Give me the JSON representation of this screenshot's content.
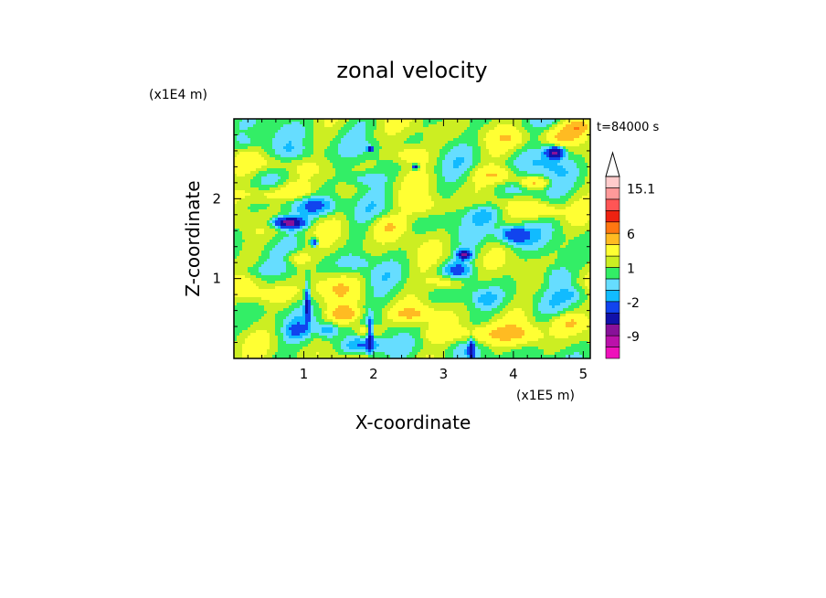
{
  "chart_data": {
    "type": "heatmap",
    "title": "zonal velocity",
    "xlabel": "X-coordinate",
    "ylabel": "Z-coordinate",
    "x_scale_label": "(x1E5 m)",
    "y_scale_label": "(x1E4 m)",
    "time_label": "t=84000 s",
    "xlim": [
      0,
      5.1
    ],
    "ylim": [
      0,
      3.0
    ],
    "x_ticks": [
      1,
      2,
      3,
      4,
      5
    ],
    "x_tick_labels": [
      "1",
      "2",
      "3",
      "4",
      "5"
    ],
    "y_ticks": [
      1,
      2
    ],
    "y_tick_labels": [
      "1",
      "2"
    ],
    "colorbar": {
      "levels": [
        -15,
        -12,
        -9,
        -6,
        -4,
        -2,
        -1,
        0,
        1,
        2,
        4,
        6,
        8,
        10,
        12.5,
        15.1
      ],
      "labeled_ticks": [
        {
          "value": 15.1,
          "label": "15.1"
        },
        {
          "value": 6,
          "label": "6"
        },
        {
          "value": 1,
          "label": "1"
        },
        {
          "value": -2,
          "label": "-2"
        },
        {
          "value": -9,
          "label": "-9"
        }
      ],
      "colors": [
        "#ee11bb",
        "#bb11aa",
        "#881199",
        "#1111aa",
        "#1144ee",
        "#11bbff",
        "#66ddff",
        "#33ee66",
        "#ccee22",
        "#ffff33",
        "#ffbb22",
        "#ff7711",
        "#ee2211",
        "#ff5555",
        "#ff9999",
        "#ffcccc"
      ],
      "extend_top": true
    },
    "field_features": [
      {
        "x": 0.78,
        "z": 1.7,
        "sx": 0.22,
        "sz": 0.07,
        "v": -8
      },
      {
        "x": 1.15,
        "z": 1.45,
        "sx": 0.05,
        "sz": 0.05,
        "v": -6
      },
      {
        "x": 1.2,
        "z": 1.9,
        "sx": 0.3,
        "sz": 0.12,
        "v": -3
      },
      {
        "x": 0.45,
        "z": 2.05,
        "sx": 0.35,
        "sz": 0.1,
        "v": 2.5
      },
      {
        "x": 0.6,
        "z": 2.45,
        "sx": 0.35,
        "sz": 0.1,
        "v": 1.5
      },
      {
        "x": 1.0,
        "z": 2.55,
        "sx": 0.4,
        "sz": 0.14,
        "v": -1.5
      },
      {
        "x": 1.85,
        "z": 2.25,
        "sx": 0.3,
        "sz": 0.1,
        "v": -2
      },
      {
        "x": 0.9,
        "z": 2.1,
        "sx": 0.25,
        "sz": 0.1,
        "v": 3
      },
      {
        "x": 4.6,
        "z": 2.58,
        "sx": 0.13,
        "sz": 0.07,
        "v": -8
      },
      {
        "x": 4.55,
        "z": 2.45,
        "sx": 0.35,
        "sz": 0.18,
        "v": -2
      },
      {
        "x": 4.7,
        "z": 2.8,
        "sx": 0.3,
        "sz": 0.12,
        "v": 3
      },
      {
        "x": 4.95,
        "z": 2.9,
        "sx": 0.2,
        "sz": 0.1,
        "v": 3.5
      },
      {
        "x": 4.0,
        "z": 1.55,
        "sx": 0.22,
        "sz": 0.12,
        "v": -5
      },
      {
        "x": 4.6,
        "z": 1.05,
        "sx": 0.2,
        "sz": 0.12,
        "v": -1.5
      },
      {
        "x": 4.8,
        "z": 1.4,
        "sx": 0.3,
        "sz": 0.12,
        "v": 0.5
      },
      {
        "x": 4.4,
        "z": 1.85,
        "sx": 0.3,
        "sz": 0.1,
        "v": 3
      },
      {
        "x": 3.75,
        "z": 2.3,
        "sx": 0.3,
        "sz": 0.1,
        "v": 3
      },
      {
        "x": 4.1,
        "z": 2.1,
        "sx": 0.3,
        "sz": 0.1,
        "v": -2
      },
      {
        "x": 3.3,
        "z": 1.3,
        "sx": 0.1,
        "sz": 0.06,
        "v": -7
      },
      {
        "x": 3.2,
        "z": 1.1,
        "sx": 0.2,
        "sz": 0.1,
        "v": -3
      },
      {
        "x": 3.05,
        "z": 0.95,
        "sx": 0.25,
        "sz": 0.1,
        "v": 3
      },
      {
        "x": 2.75,
        "z": 1.9,
        "sx": 0.3,
        "sz": 0.15,
        "v": 2
      },
      {
        "x": 2.2,
        "z": 1.65,
        "sx": 0.25,
        "sz": 0.14,
        "v": 3
      },
      {
        "x": 2.5,
        "z": 2.55,
        "sx": 0.3,
        "sz": 0.12,
        "v": 2.5
      },
      {
        "x": 1.95,
        "z": 2.8,
        "sx": 0.3,
        "sz": 0.1,
        "v": 0.5
      },
      {
        "x": 1.6,
        "z": 0.55,
        "sx": 0.2,
        "sz": 0.1,
        "v": 4
      },
      {
        "x": 1.35,
        "z": 0.35,
        "sx": 0.15,
        "sz": 0.1,
        "v": -3
      },
      {
        "x": 1.85,
        "z": 0.15,
        "sx": 0.3,
        "sz": 0.1,
        "v": -3
      },
      {
        "x": 1.9,
        "z": 0.35,
        "sx": 0.2,
        "sz": 0.08,
        "v": 3
      },
      {
        "x": 0.9,
        "z": 0.35,
        "sx": 0.15,
        "sz": 0.1,
        "v": -2
      },
      {
        "x": 1.45,
        "z": 0.9,
        "sx": 0.3,
        "sz": 0.15,
        "v": 2.5
      },
      {
        "x": 0.5,
        "z": 0.8,
        "sx": 0.4,
        "sz": 0.12,
        "v": 1.5
      },
      {
        "x": 0.25,
        "z": 1.1,
        "sx": 0.3,
        "sz": 0.1,
        "v": -1.5
      },
      {
        "x": 2.55,
        "z": 0.55,
        "sx": 0.3,
        "sz": 0.1,
        "v": 3
      },
      {
        "x": 3.0,
        "z": 0.3,
        "sx": 0.3,
        "sz": 0.1,
        "v": 2
      },
      {
        "x": 3.55,
        "z": 0.3,
        "sx": 0.3,
        "sz": 0.12,
        "v": 3
      },
      {
        "x": 3.6,
        "z": 0.75,
        "sx": 0.2,
        "sz": 0.1,
        "v": -1.5
      },
      {
        "x": 4.1,
        "z": 0.3,
        "sx": 0.35,
        "sz": 0.12,
        "v": 2.5
      },
      {
        "x": 4.8,
        "z": 0.45,
        "sx": 0.3,
        "sz": 0.12,
        "v": 3
      },
      {
        "x": 4.9,
        "z": 0.8,
        "sx": 0.2,
        "sz": 0.1,
        "v": -1.5
      },
      {
        "x": 0.9,
        "z": 1.25,
        "sx": 0.2,
        "sz": 0.1,
        "v": 2.5
      },
      {
        "x": 1.75,
        "z": 1.2,
        "sx": 0.2,
        "sz": 0.1,
        "v": -1.5
      },
      {
        "x": 3.6,
        "z": 1.8,
        "sx": 0.25,
        "sz": 0.1,
        "v": -2
      },
      {
        "x": 0.2,
        "z": 2.7,
        "sx": 0.25,
        "sz": 0.1,
        "v": -1.5
      },
      {
        "x": 1.95,
        "z": 2.62,
        "sx": 0.04,
        "sz": 0.03,
        "v": -8
      },
      {
        "x": 2.6,
        "z": 2.4,
        "sx": 0.04,
        "sz": 0.03,
        "v": -8
      },
      {
        "x": 4.3,
        "z": 2.2,
        "sx": 0.2,
        "sz": 0.08,
        "v": 4
      },
      {
        "x": 3.95,
        "z": 2.75,
        "sx": 0.3,
        "sz": 0.1,
        "v": 1.5
      },
      {
        "x": 1.05,
        "z": 0.7,
        "sx": 0.04,
        "sz": 0.25,
        "v": -5
      },
      {
        "x": 1.95,
        "z": 0.3,
        "sx": 0.04,
        "sz": 0.2,
        "v": -6
      },
      {
        "x": 3.4,
        "z": 0.1,
        "sx": 0.04,
        "sz": 0.15,
        "v": -5
      }
    ]
  }
}
